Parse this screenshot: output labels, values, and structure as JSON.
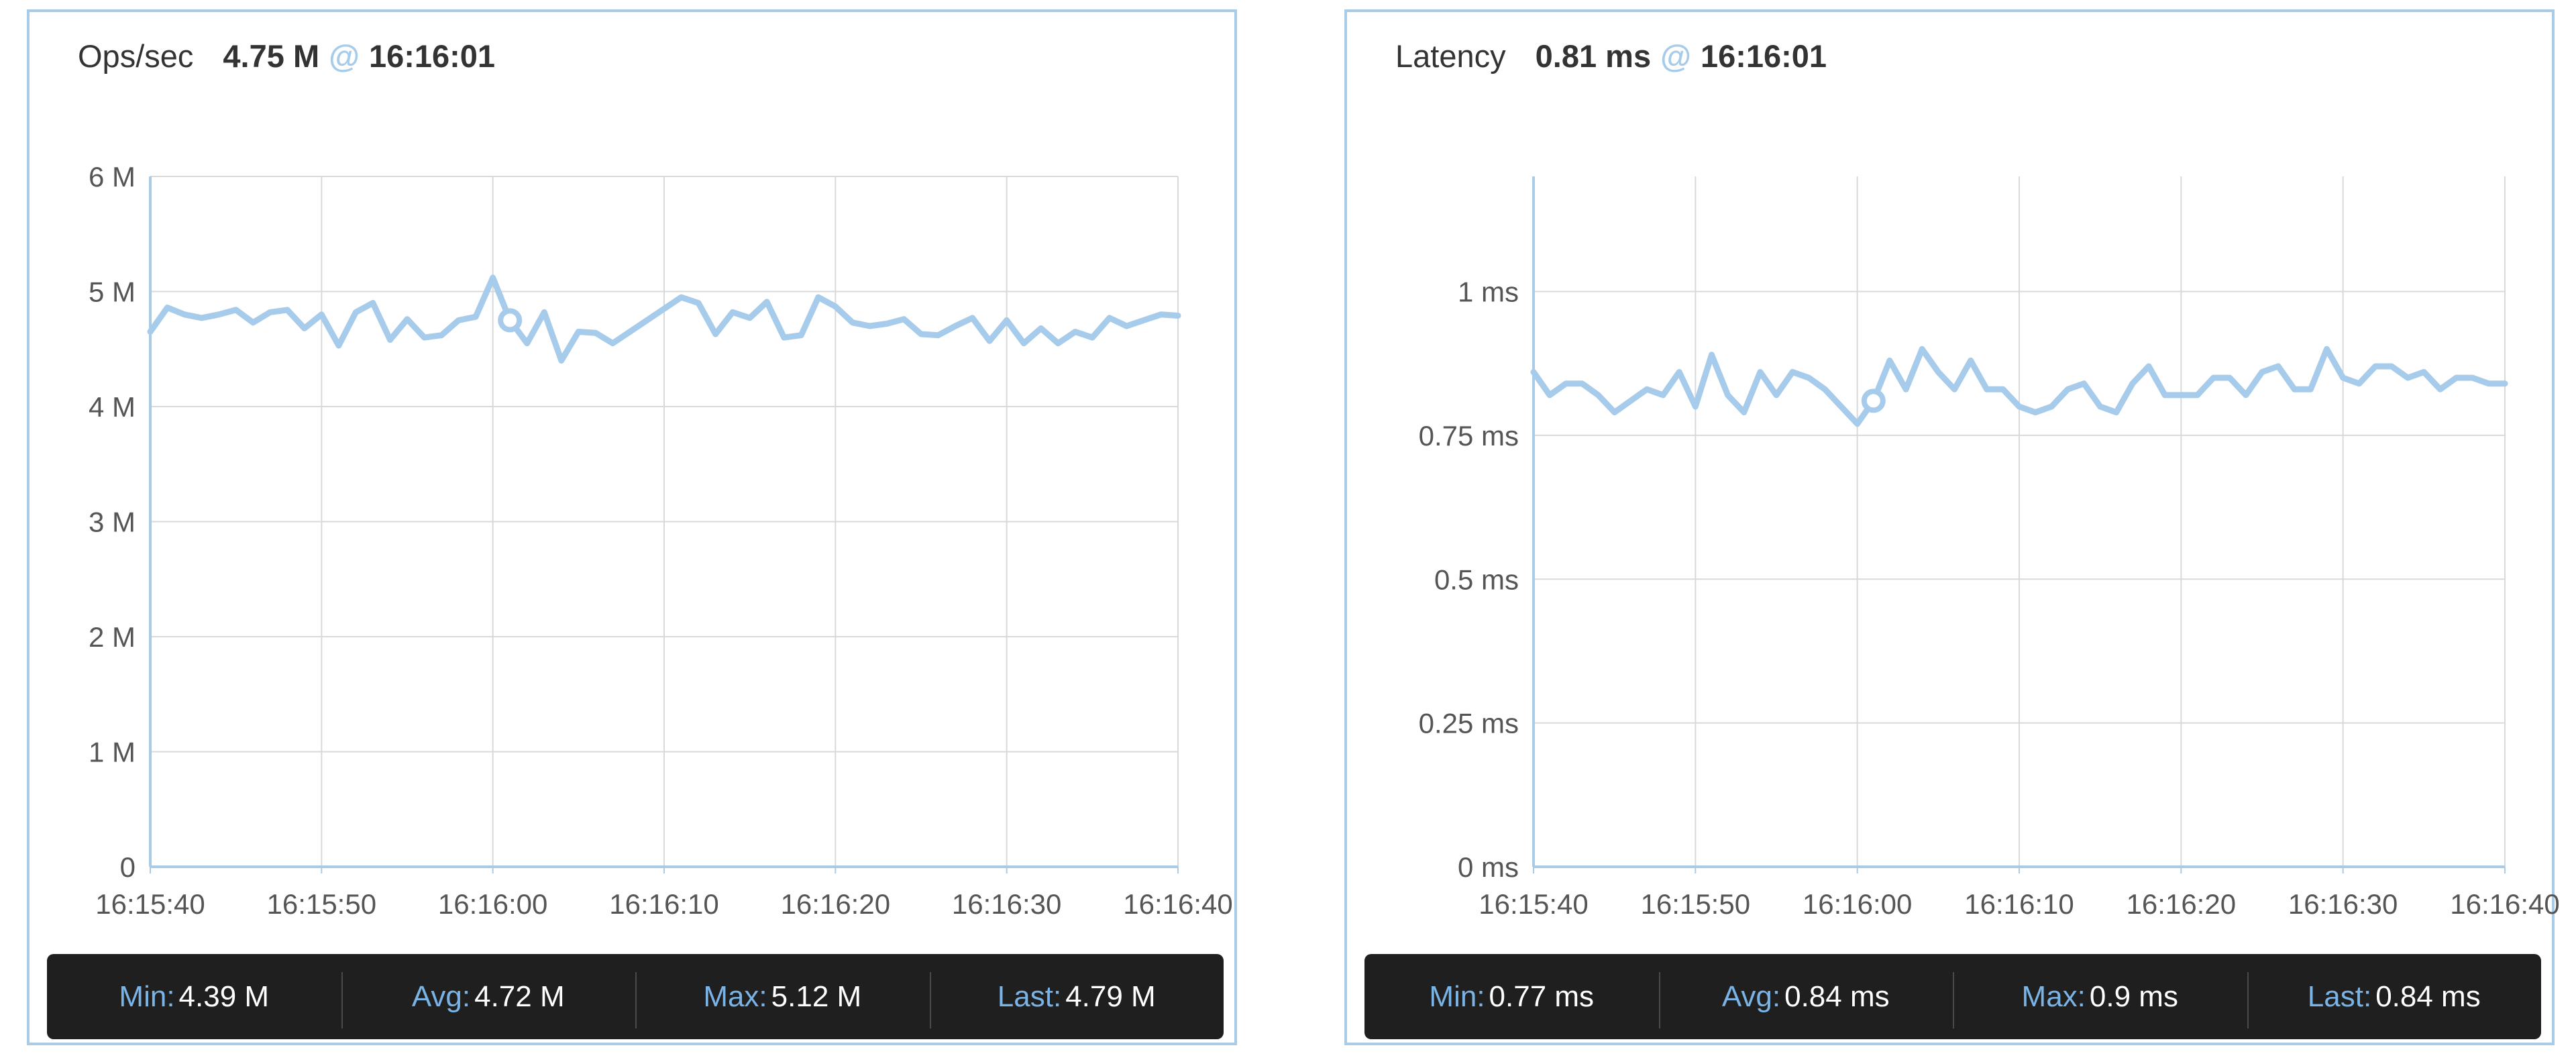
{
  "colors": {
    "accent": "#a7cbea",
    "grid": "#d9d9d9",
    "axis": "#a8cbe8",
    "tick_text": "#555555",
    "stats_bg": "#1f1f1f",
    "stats_label": "#7ab4e6"
  },
  "panels": [
    {
      "header": {
        "label": "Ops/sec",
        "value": "4.75 M",
        "at": "@",
        "time": "16:16:01"
      },
      "stats": [
        {
          "label": "Min:",
          "value": "4.39 M"
        },
        {
          "label": "Avg:",
          "value": "4.72 M"
        },
        {
          "label": "Max:",
          "value": "5.12 M"
        },
        {
          "label": "Last:",
          "value": "4.79 M"
        }
      ]
    },
    {
      "header": {
        "label": "Latency",
        "value": "0.81 ms",
        "at": "@",
        "time": "16:16:01"
      },
      "stats": [
        {
          "label": "Min:",
          "value": "0.77 ms"
        },
        {
          "label": "Avg:",
          "value": "0.84 ms"
        },
        {
          "label": "Max:",
          "value": "0.9 ms"
        },
        {
          "label": "Last:",
          "value": "0.84 ms"
        }
      ]
    }
  ],
  "chart_data": [
    {
      "type": "line",
      "title": "Ops/sec",
      "x_range_seconds_from_16_15_40": [
        0,
        60
      ],
      "xticks": [
        "16:15:40",
        "16:15:50",
        "16:16:00",
        "16:16:10",
        "16:16:20",
        "16:16:30",
        "16:16:40"
      ],
      "yticks": [
        "0",
        "1 M",
        "2 M",
        "3 M",
        "4 M",
        "5 M",
        "6 M"
      ],
      "ylim": [
        0,
        6
      ],
      "yunit": "M",
      "grid": true,
      "highlight": {
        "x": "16:16:01",
        "y": 4.75
      },
      "series": [
        {
          "values": [
            4.65,
            4.86,
            4.8,
            4.77,
            4.8,
            4.84,
            4.73,
            4.82,
            4.84,
            4.68,
            4.8,
            4.53,
            4.82,
            4.9,
            4.58,
            4.76,
            4.6,
            4.62,
            4.75,
            4.78,
            5.12,
            4.75,
            4.55,
            4.82,
            4.4,
            4.65,
            4.64,
            4.55,
            4.65,
            4.75,
            4.85,
            4.95,
            4.9,
            4.63,
            4.82,
            4.77,
            4.91,
            4.6,
            4.62,
            4.95,
            4.87,
            4.73,
            4.7,
            4.72,
            4.76,
            4.63,
            4.62,
            4.7,
            4.77,
            4.57,
            4.75,
            4.55,
            4.68,
            4.55,
            4.65,
            4.6,
            4.77,
            4.7,
            4.75,
            4.8,
            4.79
          ]
        }
      ]
    },
    {
      "type": "line",
      "title": "Latency",
      "x_range_seconds_from_16_15_40": [
        0,
        60
      ],
      "xticks": [
        "16:15:40",
        "16:15:50",
        "16:16:00",
        "16:16:10",
        "16:16:20",
        "16:16:30",
        "16:16:40"
      ],
      "yticks": [
        "0 ms",
        "0.25 ms",
        "0.5 ms",
        "0.75 ms",
        "1 ms"
      ],
      "ylim": [
        0,
        1.2
      ],
      "yunit": "ms",
      "grid": true,
      "highlight": {
        "x": "16:16:01",
        "y": 0.81
      },
      "series": [
        {
          "values": [
            0.86,
            0.82,
            0.84,
            0.84,
            0.82,
            0.79,
            0.81,
            0.83,
            0.82,
            0.86,
            0.8,
            0.89,
            0.82,
            0.79,
            0.86,
            0.82,
            0.86,
            0.85,
            0.83,
            0.8,
            0.77,
            0.81,
            0.88,
            0.83,
            0.9,
            0.86,
            0.83,
            0.88,
            0.83,
            0.83,
            0.8,
            0.79,
            0.8,
            0.83,
            0.84,
            0.8,
            0.79,
            0.84,
            0.87,
            0.82,
            0.82,
            0.82,
            0.85,
            0.85,
            0.82,
            0.86,
            0.87,
            0.83,
            0.83,
            0.9,
            0.85,
            0.84,
            0.87,
            0.87,
            0.85,
            0.86,
            0.83,
            0.85,
            0.85,
            0.84,
            0.84
          ]
        }
      ]
    }
  ]
}
